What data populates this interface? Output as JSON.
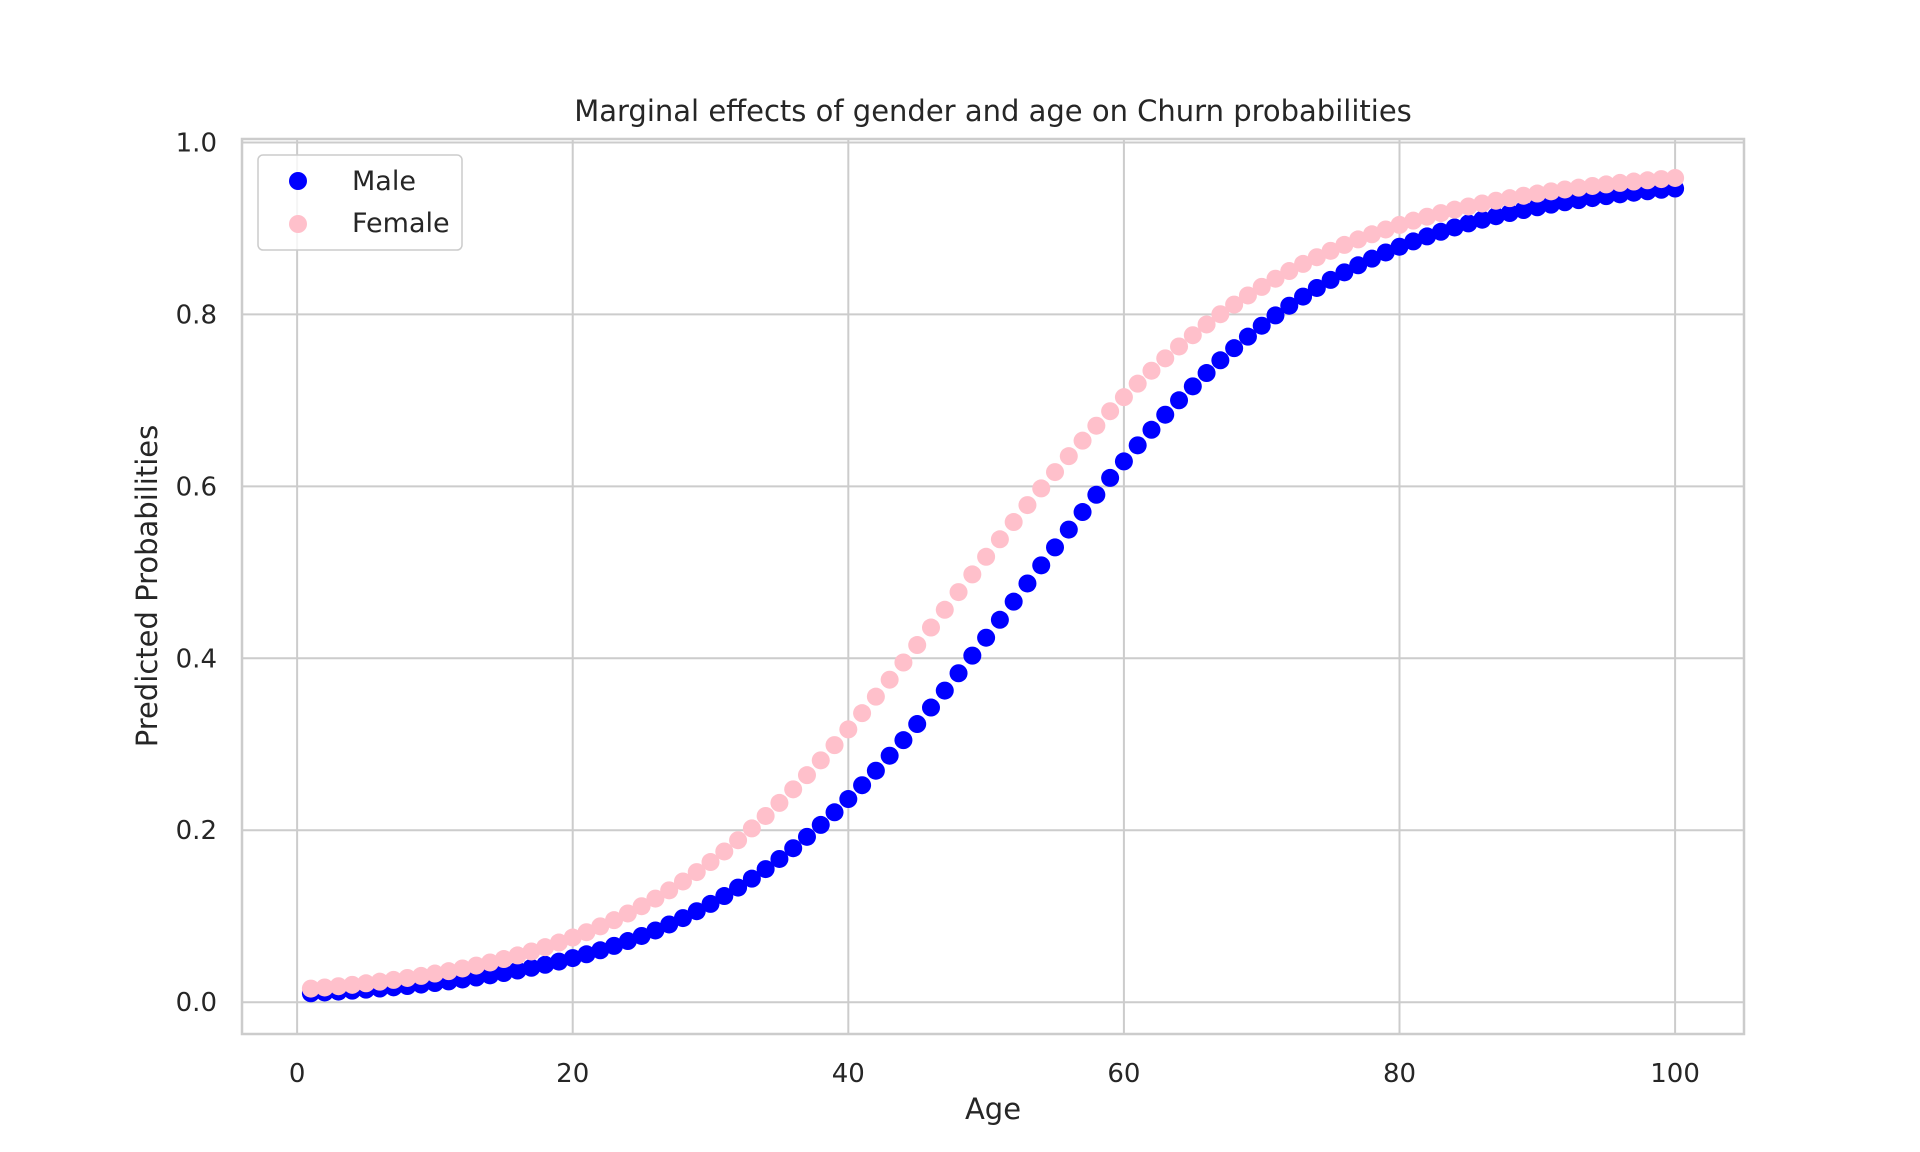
{
  "chart_data": {
    "type": "scatter",
    "title": "Marginal effects of gender and age on Churn probabilities",
    "xlabel": "Age",
    "ylabel": "Predicted Probabilities",
    "xlim": [
      -4,
      105
    ],
    "ylim": [
      -0.037,
      1.004
    ],
    "xticks": [
      0,
      20,
      40,
      60,
      80,
      100
    ],
    "xtick_labels": [
      "0",
      "20",
      "40",
      "60",
      "80",
      "100"
    ],
    "yticks": [
      0.0,
      0.2,
      0.4,
      0.6,
      0.8,
      1.0
    ],
    "ytick_labels": [
      "0.0",
      "0.2",
      "0.4",
      "0.6",
      "0.8",
      "1.0"
    ],
    "grid": true,
    "legend_position": "top-left",
    "background": "#ffffff",
    "x": [
      1,
      2,
      3,
      4,
      5,
      6,
      7,
      8,
      9,
      10,
      11,
      12,
      13,
      14,
      15,
      16,
      17,
      18,
      19,
      20,
      21,
      22,
      23,
      24,
      25,
      26,
      27,
      28,
      29,
      30,
      31,
      32,
      33,
      34,
      35,
      36,
      37,
      38,
      39,
      40,
      41,
      42,
      43,
      44,
      45,
      46,
      47,
      48,
      49,
      50,
      51,
      52,
      53,
      54,
      55,
      56,
      57,
      58,
      59,
      60,
      61,
      62,
      63,
      64,
      65,
      66,
      67,
      68,
      69,
      70,
      71,
      72,
      73,
      74,
      75,
      76,
      77,
      78,
      79,
      80,
      81,
      82,
      83,
      84,
      85,
      86,
      87,
      88,
      89,
      90,
      91,
      92,
      93,
      94,
      95,
      96,
      97,
      98,
      99,
      100
    ],
    "series": [
      {
        "name": "Male",
        "color": "#0000ff",
        "values": [
          0.0104,
          0.0113,
          0.0123,
          0.0134,
          0.0146,
          0.0159,
          0.0173,
          0.0188,
          0.0205,
          0.0223,
          0.0242,
          0.0264,
          0.0287,
          0.0312,
          0.0339,
          0.0368,
          0.04,
          0.0435,
          0.0472,
          0.0513,
          0.0557,
          0.0604,
          0.0655,
          0.0711,
          0.077,
          0.0834,
          0.0904,
          0.0978,
          0.1058,
          0.1143,
          0.1235,
          0.1333,
          0.1437,
          0.1548,
          0.1666,
          0.1791,
          0.1923,
          0.2062,
          0.2209,
          0.2363,
          0.2524,
          0.2692,
          0.2867,
          0.3048,
          0.3235,
          0.3427,
          0.3624,
          0.3826,
          0.4031,
          0.4239,
          0.4448,
          0.4659,
          0.487,
          0.5081,
          0.529,
          0.5497,
          0.5701,
          0.5902,
          0.6098,
          0.629,
          0.6477,
          0.6658,
          0.6833,
          0.7001,
          0.7163,
          0.7318,
          0.7466,
          0.7607,
          0.7741,
          0.7868,
          0.7988,
          0.8101,
          0.8207,
          0.8307,
          0.8401,
          0.8489,
          0.8571,
          0.8648,
          0.872,
          0.8787,
          0.8849,
          0.8907,
          0.8961,
          0.9011,
          0.9058,
          0.9101,
          0.9142,
          0.9179,
          0.9214,
          0.9246,
          0.9276,
          0.9304,
          0.9329,
          0.9353,
          0.9375,
          0.9396,
          0.9415,
          0.9432,
          0.9449,
          0.9464
        ]
      },
      {
        "name": "Female",
        "color": "#ffc0cb",
        "values": [
          0.0158,
          0.0171,
          0.0186,
          0.0202,
          0.022,
          0.0239,
          0.0259,
          0.0282,
          0.0306,
          0.0333,
          0.0361,
          0.0392,
          0.0426,
          0.0462,
          0.0502,
          0.0544,
          0.059,
          0.064,
          0.0694,
          0.0752,
          0.0814,
          0.0882,
          0.0954,
          0.1032,
          0.1116,
          0.1205,
          0.1301,
          0.1404,
          0.1513,
          0.163,
          0.1753,
          0.1884,
          0.2021,
          0.2166,
          0.2318,
          0.2476,
          0.2641,
          0.2813,
          0.299,
          0.3173,
          0.3362,
          0.3554,
          0.3751,
          0.3951,
          0.4154,
          0.4358,
          0.4564,
          0.477,
          0.4976,
          0.5181,
          0.5384,
          0.5585,
          0.5782,
          0.5976,
          0.6166,
          0.6351,
          0.6531,
          0.6705,
          0.6874,
          0.7037,
          0.7194,
          0.7345,
          0.7489,
          0.7627,
          0.7758,
          0.7883,
          0.8002,
          0.8114,
          0.822,
          0.832,
          0.8415,
          0.8504,
          0.8587,
          0.8665,
          0.8739,
          0.8808,
          0.8872,
          0.8932,
          0.8988,
          0.9041,
          0.909,
          0.9136,
          0.9178,
          0.9218,
          0.9255,
          0.929,
          0.9322,
          0.9352,
          0.938,
          0.9406,
          0.9431,
          0.9453,
          0.9474,
          0.9494,
          0.9512,
          0.9529,
          0.9545,
          0.956,
          0.9574,
          0.9587
        ]
      }
    ]
  }
}
